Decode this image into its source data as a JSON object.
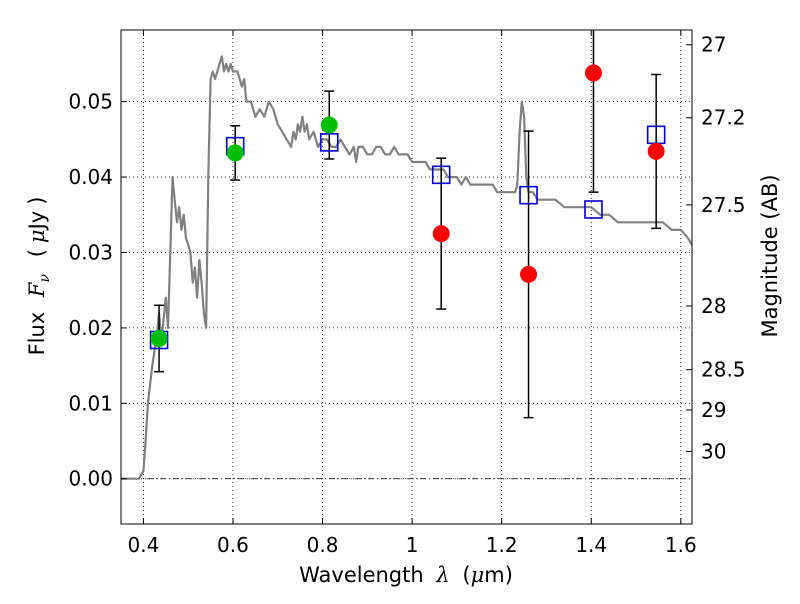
{
  "chart_data": {
    "type": "scatter",
    "title": "",
    "xlabel": {
      "prefix": "Wavelength",
      "symbol": "λ",
      "unit_open": "(",
      "unit_mu": "μ",
      "unit_rest": "m)"
    },
    "ylabel": {
      "prefix": "Flux",
      "symbol": "F",
      "subscript": "ν",
      "unit_open": "(",
      "unit_mu": "μ",
      "unit_rest": "Jy",
      "unit_close": ")"
    },
    "y2label": "Magnitude (AB)",
    "xlim": [
      0.35,
      1.625
    ],
    "ylim": [
      -0.006,
      0.0595
    ],
    "grid": true,
    "x_ticks": [
      {
        "value": 0.4,
        "label": "0.4"
      },
      {
        "value": 0.6,
        "label": "0.6"
      },
      {
        "value": 0.8,
        "label": "0.8"
      },
      {
        "value": 1.0,
        "label": "1"
      },
      {
        "value": 1.2,
        "label": "1.2"
      },
      {
        "value": 1.4,
        "label": "1.4"
      },
      {
        "value": 1.6,
        "label": "1.6"
      }
    ],
    "y_ticks": [
      {
        "value": 0.0,
        "label": "0.00"
      },
      {
        "value": 0.01,
        "label": "0.01"
      },
      {
        "value": 0.02,
        "label": "0.02"
      },
      {
        "value": 0.03,
        "label": "0.03"
      },
      {
        "value": 0.04,
        "label": "0.04"
      },
      {
        "value": 0.05,
        "label": "0.05"
      }
    ],
    "mag_ticks": [
      {
        "value": 27,
        "label": "27"
      },
      {
        "value": 27.2,
        "label": "27.2"
      },
      {
        "value": 27.5,
        "label": "27.5"
      },
      {
        "value": 28,
        "label": "28"
      },
      {
        "value": 28.5,
        "label": "28.5"
      },
      {
        "value": 29,
        "label": "29"
      },
      {
        "value": 30,
        "label": "30"
      }
    ],
    "series": [
      {
        "name": "model SED",
        "kind": "line",
        "color": "#808080",
        "points": [
          [
            0.35,
            0.0
          ],
          [
            0.39,
            0.0
          ],
          [
            0.4,
            0.001
          ],
          [
            0.405,
            0.005
          ],
          [
            0.41,
            0.01
          ],
          [
            0.42,
            0.015
          ],
          [
            0.43,
            0.019
          ],
          [
            0.435,
            0.022
          ],
          [
            0.44,
            0.018
          ],
          [
            0.445,
            0.021
          ],
          [
            0.45,
            0.024
          ],
          [
            0.455,
            0.02
          ],
          [
            0.46,
            0.03
          ],
          [
            0.465,
            0.04
          ],
          [
            0.47,
            0.037
          ],
          [
            0.475,
            0.034
          ],
          [
            0.48,
            0.036
          ],
          [
            0.485,
            0.033
          ],
          [
            0.49,
            0.035
          ],
          [
            0.495,
            0.032
          ],
          [
            0.5,
            0.031
          ],
          [
            0.505,
            0.03
          ],
          [
            0.51,
            0.026
          ],
          [
            0.515,
            0.028
          ],
          [
            0.52,
            0.024
          ],
          [
            0.525,
            0.029
          ],
          [
            0.53,
            0.026
          ],
          [
            0.535,
            0.022
          ],
          [
            0.54,
            0.02
          ],
          [
            0.545,
            0.04
          ],
          [
            0.55,
            0.053
          ],
          [
            0.555,
            0.054
          ],
          [
            0.56,
            0.053
          ],
          [
            0.565,
            0.054
          ],
          [
            0.57,
            0.055
          ],
          [
            0.575,
            0.056
          ],
          [
            0.58,
            0.054
          ],
          [
            0.585,
            0.055
          ],
          [
            0.59,
            0.054
          ],
          [
            0.595,
            0.055
          ],
          [
            0.6,
            0.054
          ],
          [
            0.61,
            0.054
          ],
          [
            0.62,
            0.052
          ],
          [
            0.625,
            0.053
          ],
          [
            0.63,
            0.05
          ],
          [
            0.64,
            0.05
          ],
          [
            0.65,
            0.048
          ],
          [
            0.66,
            0.049
          ],
          [
            0.67,
            0.048
          ],
          [
            0.68,
            0.05
          ],
          [
            0.69,
            0.049
          ],
          [
            0.7,
            0.047
          ],
          [
            0.71,
            0.046
          ],
          [
            0.72,
            0.045
          ],
          [
            0.73,
            0.044
          ],
          [
            0.735,
            0.046
          ],
          [
            0.74,
            0.045
          ],
          [
            0.745,
            0.047
          ],
          [
            0.75,
            0.046
          ],
          [
            0.755,
            0.048
          ],
          [
            0.76,
            0.046
          ],
          [
            0.765,
            0.047
          ],
          [
            0.77,
            0.045
          ],
          [
            0.78,
            0.046
          ],
          [
            0.79,
            0.044
          ],
          [
            0.8,
            0.045
          ],
          [
            0.81,
            0.045
          ],
          [
            0.82,
            0.044
          ],
          [
            0.83,
            0.044
          ],
          [
            0.84,
            0.045
          ],
          [
            0.85,
            0.044
          ],
          [
            0.86,
            0.043
          ],
          [
            0.87,
            0.044
          ],
          [
            0.875,
            0.042
          ],
          [
            0.88,
            0.044
          ],
          [
            0.89,
            0.044
          ],
          [
            0.9,
            0.043
          ],
          [
            0.91,
            0.043
          ],
          [
            0.92,
            0.044
          ],
          [
            0.93,
            0.044
          ],
          [
            0.94,
            0.043
          ],
          [
            0.95,
            0.043
          ],
          [
            0.96,
            0.044
          ],
          [
            0.97,
            0.043
          ],
          [
            0.98,
            0.043
          ],
          [
            0.99,
            0.043
          ],
          [
            1.0,
            0.042
          ],
          [
            1.01,
            0.042
          ],
          [
            1.02,
            0.042
          ],
          [
            1.03,
            0.042
          ],
          [
            1.04,
            0.041
          ],
          [
            1.05,
            0.041
          ],
          [
            1.06,
            0.041
          ],
          [
            1.07,
            0.041
          ],
          [
            1.08,
            0.04
          ],
          [
            1.09,
            0.04
          ],
          [
            1.1,
            0.04
          ],
          [
            1.11,
            0.039
          ],
          [
            1.12,
            0.04
          ],
          [
            1.13,
            0.039
          ],
          [
            1.14,
            0.039
          ],
          [
            1.15,
            0.039
          ],
          [
            1.16,
            0.039
          ],
          [
            1.17,
            0.039
          ],
          [
            1.18,
            0.039
          ],
          [
            1.19,
            0.038
          ],
          [
            1.2,
            0.038
          ],
          [
            1.21,
            0.038
          ],
          [
            1.22,
            0.038
          ],
          [
            1.23,
            0.038
          ],
          [
            1.235,
            0.039
          ],
          [
            1.24,
            0.046
          ],
          [
            1.245,
            0.05
          ],
          [
            1.25,
            0.048
          ],
          [
            1.255,
            0.04
          ],
          [
            1.26,
            0.038
          ],
          [
            1.27,
            0.038
          ],
          [
            1.28,
            0.037
          ],
          [
            1.29,
            0.037
          ],
          [
            1.3,
            0.037
          ],
          [
            1.32,
            0.037
          ],
          [
            1.34,
            0.036
          ],
          [
            1.36,
            0.036
          ],
          [
            1.38,
            0.036
          ],
          [
            1.4,
            0.036
          ],
          [
            1.42,
            0.035
          ],
          [
            1.44,
            0.035
          ],
          [
            1.46,
            0.034
          ],
          [
            1.48,
            0.034
          ],
          [
            1.5,
            0.034
          ],
          [
            1.52,
            0.034
          ],
          [
            1.54,
            0.034
          ],
          [
            1.56,
            0.034
          ],
          [
            1.58,
            0.033
          ],
          [
            1.6,
            0.033
          ],
          [
            1.615,
            0.032
          ],
          [
            1.625,
            0.031
          ]
        ]
      },
      {
        "name": "green detections",
        "kind": "points",
        "color": "#00bf00",
        "points": [
          {
            "x": 0.435,
            "y": 0.0186,
            "err": 0.0044
          },
          {
            "x": 0.605,
            "y": 0.0432,
            "err": 0.0036
          },
          {
            "x": 0.815,
            "y": 0.0469,
            "err": 0.0045
          }
        ]
      },
      {
        "name": "red detections",
        "kind": "points",
        "color": "#ff0000",
        "points": [
          {
            "x": 1.065,
            "y": 0.0325,
            "err": 0.01
          },
          {
            "x": 1.26,
            "y": 0.0271,
            "err": 0.019
          },
          {
            "x": 1.405,
            "y": 0.0538,
            "err": 0.0158
          },
          {
            "x": 1.545,
            "y": 0.0434,
            "err": 0.0102
          }
        ]
      },
      {
        "name": "model band fluxes",
        "kind": "squares",
        "color": "#0000cc",
        "points": [
          {
            "x": 0.435,
            "y": 0.0184
          },
          {
            "x": 0.605,
            "y": 0.0441
          },
          {
            "x": 0.815,
            "y": 0.0446
          },
          {
            "x": 1.065,
            "y": 0.0403
          },
          {
            "x": 1.26,
            "y": 0.0376
          },
          {
            "x": 1.405,
            "y": 0.0357
          },
          {
            "x": 1.545,
            "y": 0.0456
          }
        ]
      }
    ]
  }
}
